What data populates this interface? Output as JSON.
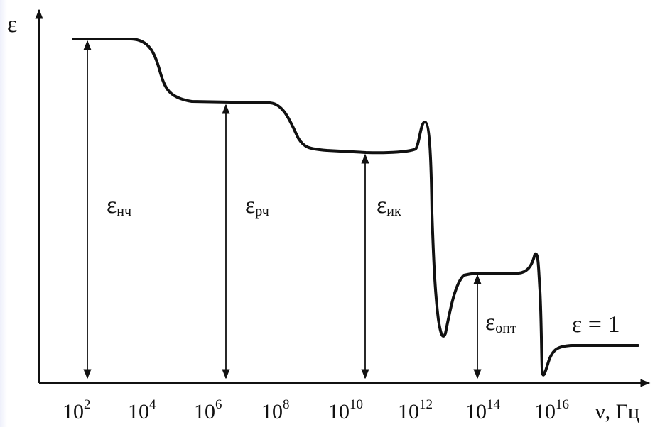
{
  "diagram": {
    "y_axis_label": "ε",
    "x_axis_label": "ν, Гц",
    "ticks": [
      {
        "base": "10",
        "exp": "2"
      },
      {
        "base": "10",
        "exp": "4"
      },
      {
        "base": "10",
        "exp": "6"
      },
      {
        "base": "10",
        "exp": "8"
      },
      {
        "base": "10",
        "exp": "10"
      },
      {
        "base": "10",
        "exp": "12"
      },
      {
        "base": "10",
        "exp": "14"
      },
      {
        "base": "10",
        "exp": "16"
      }
    ],
    "levels": [
      {
        "symbol": "ε",
        "subscript": "нч"
      },
      {
        "symbol": "ε",
        "subscript": "рч"
      },
      {
        "symbol": "ε",
        "subscript": "ик"
      },
      {
        "symbol": "ε",
        "subscript": "опт"
      }
    ],
    "limit_label": "ε = 1",
    "colors": {
      "curve": "#111111",
      "axis": "#111111",
      "background": "#ffffff"
    }
  }
}
